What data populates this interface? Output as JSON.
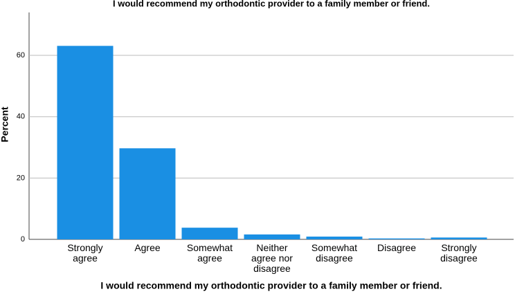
{
  "chart_data": {
    "type": "bar",
    "title": "I would recommend my orthodontic provider to a family member or friend.",
    "x_label": "I would recommend my orthodontic provider to a family member or friend.",
    "y_label": "Percent",
    "categories": [
      "Strongly agree",
      "Agree",
      "Somewhat agree",
      "Neither agree nor disagree",
      "Somewhat disagree",
      "Disagree",
      "Strongly disagree"
    ],
    "values": [
      63.1,
      29.7,
      3.8,
      1.6,
      0.9,
      0.3,
      0.6
    ],
    "color": "#1a8fe3",
    "ylim": [
      0,
      74
    ],
    "yticks": [
      0,
      20,
      40,
      60
    ],
    "grid": true
  }
}
